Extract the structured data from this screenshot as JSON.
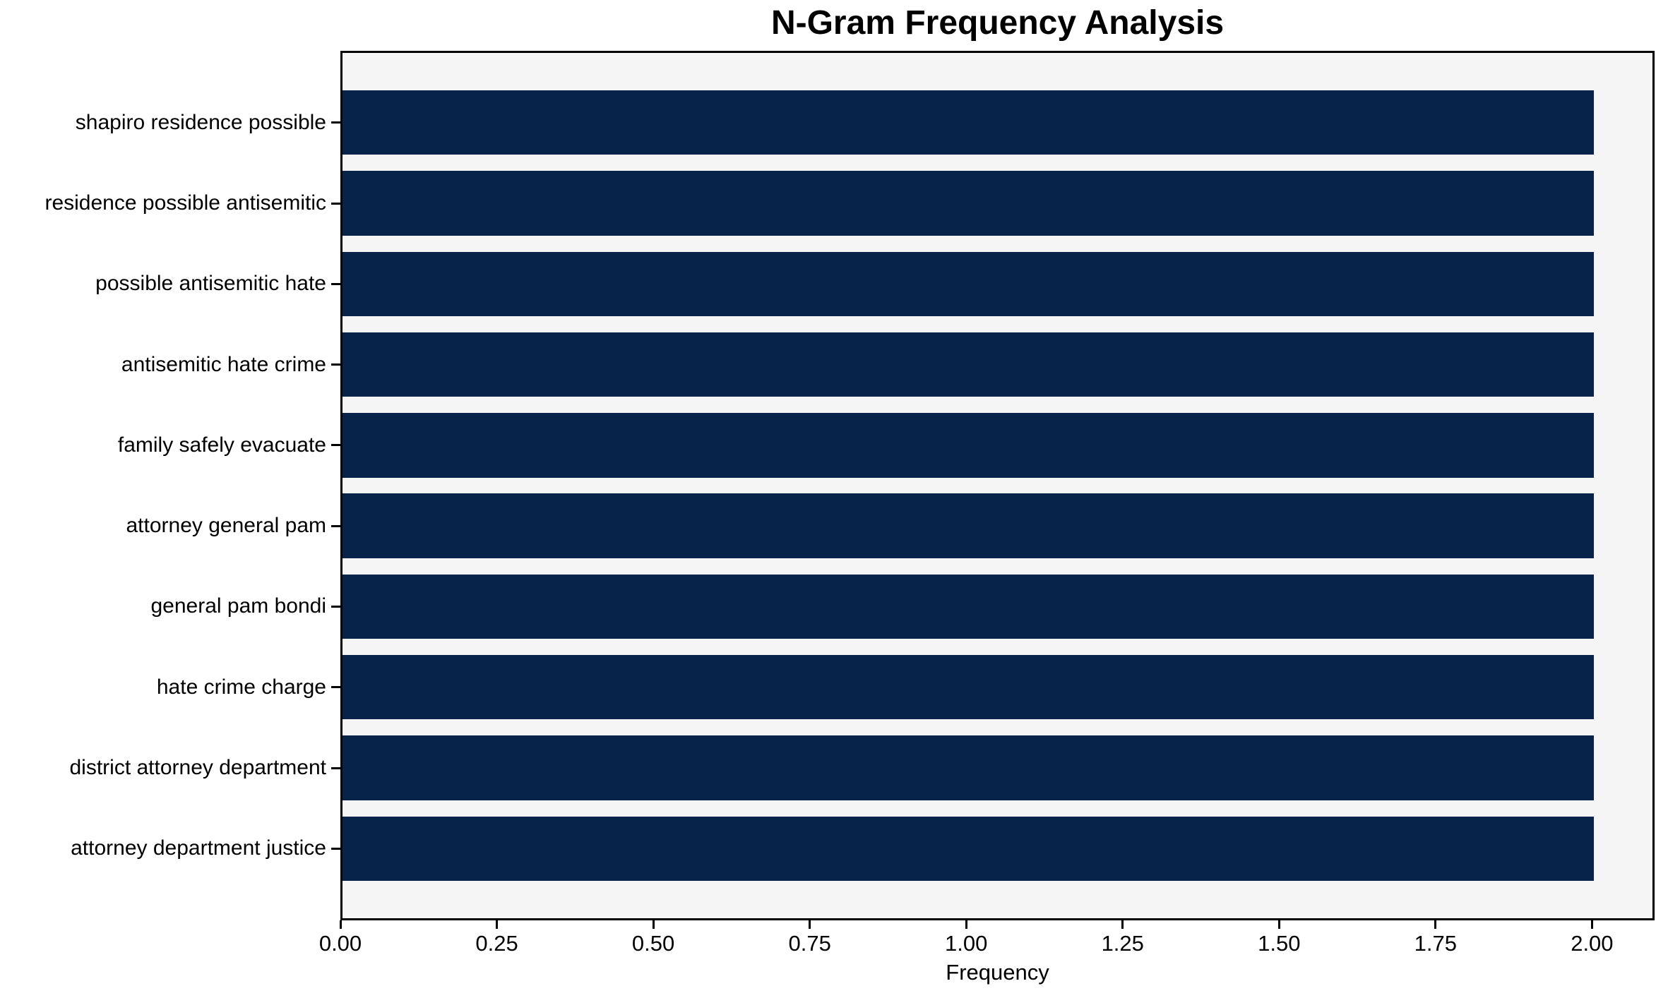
{
  "chart_data": {
    "type": "bar",
    "orientation": "horizontal",
    "title": "N-Gram Frequency Analysis",
    "xlabel": "Frequency",
    "ylabel": "",
    "categories": [
      "shapiro residence possible",
      "residence possible antisemitic",
      "possible antisemitic hate",
      "antisemitic hate crime",
      "family safely evacuate",
      "attorney general pam",
      "general pam bondi",
      "hate crime charge",
      "district attorney department",
      "attorney department justice"
    ],
    "values": [
      2,
      2,
      2,
      2,
      2,
      2,
      2,
      2,
      2,
      2
    ],
    "xlim": [
      0,
      2.1
    ],
    "xticks": [
      {
        "value": 0.0,
        "label": "0.00"
      },
      {
        "value": 0.25,
        "label": "0.25"
      },
      {
        "value": 0.5,
        "label": "0.50"
      },
      {
        "value": 0.75,
        "label": "0.75"
      },
      {
        "value": 1.0,
        "label": "1.00"
      },
      {
        "value": 1.25,
        "label": "1.25"
      },
      {
        "value": 1.5,
        "label": "1.50"
      },
      {
        "value": 1.75,
        "label": "1.75"
      },
      {
        "value": 2.0,
        "label": "2.00"
      }
    ],
    "grid": false,
    "legend": null,
    "colors": {
      "bar": "#08234a",
      "plot_background": "#f5f5f5",
      "figure_background": "#ffffff",
      "axis": "#000000",
      "text": "#000000"
    }
  }
}
